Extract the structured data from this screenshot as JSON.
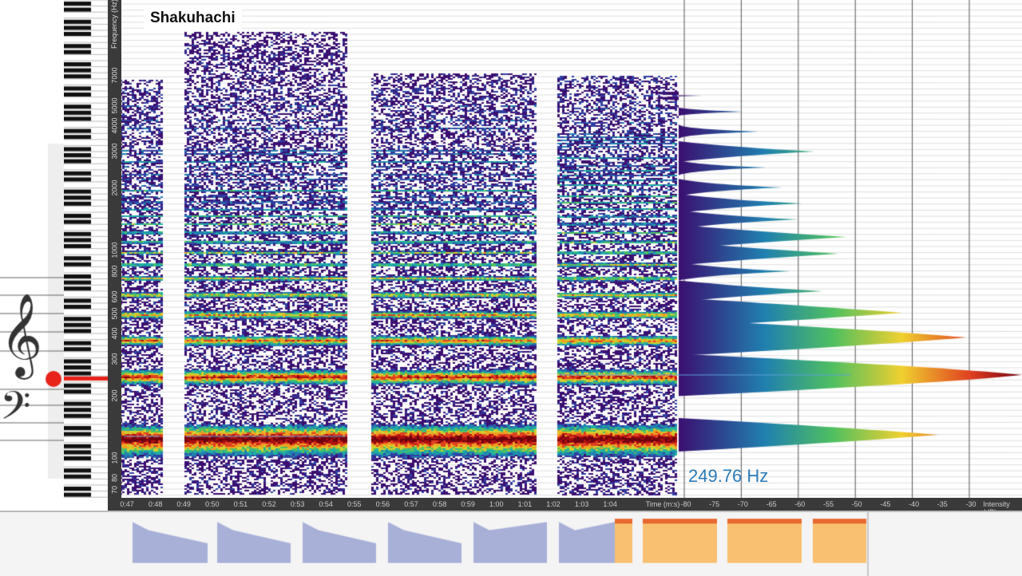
{
  "title": "Shakuhachi",
  "frequency_axis": {
    "label": "Frequency (Hz)",
    "ticks": [
      "7000",
      "5000",
      "4000",
      "3000",
      "2000",
      "1000",
      "800",
      "600",
      "500",
      "400",
      "300",
      "200",
      "100",
      "80",
      "70"
    ]
  },
  "time_axis": {
    "label": "Time (m:s)",
    "ticks": [
      "0:47",
      "0:48",
      "0:49",
      "0:50",
      "0:51",
      "0:52",
      "0:53",
      "0:54",
      "0:55",
      "0:56",
      "0:57",
      "0:58",
      "0:59",
      "1:00",
      "1:01",
      "1:02",
      "1:03",
      "1:04"
    ]
  },
  "intensity_axis": {
    "label": "Intensity (dB)",
    "ticks": [
      "-80",
      "-75",
      "-70",
      "-65",
      "-60",
      "-55",
      "-50",
      "-45",
      "-40",
      "-35",
      "-30"
    ]
  },
  "pitch_readout": "249.76 Hz",
  "colors": {
    "axis_bg": "#3a3a3a",
    "readout": "#2a7ab8",
    "marker": "#e8231a",
    "overview_blue": "#a8b0d8",
    "overview_orange": "#f8c070"
  }
}
